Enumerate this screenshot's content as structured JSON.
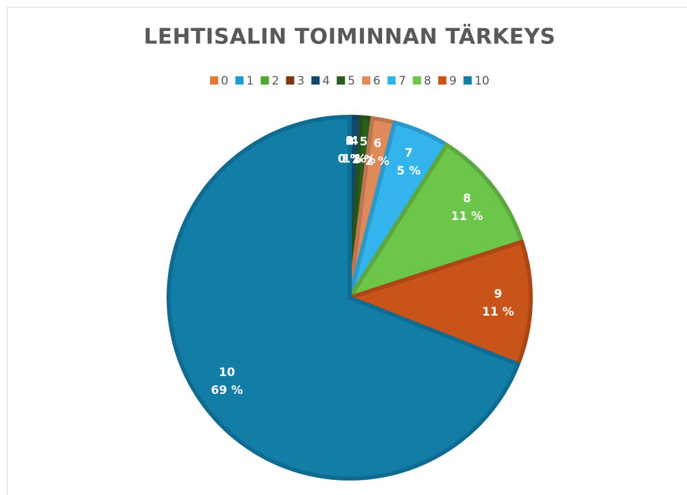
{
  "chart_data": {
    "type": "pie",
    "title": "LEHTISALIN TOIMINNAN TÄRKEYS",
    "categories": [
      "0",
      "1",
      "2",
      "3",
      "4",
      "5",
      "6",
      "7",
      "8",
      "9",
      "10"
    ],
    "values": [
      0,
      0,
      0,
      0,
      1,
      1,
      2,
      5,
      11,
      11,
      69
    ],
    "value_labels": [
      "0 %",
      "0 %",
      "0 %",
      "0 %",
      "1 %",
      "1 %",
      "2 %",
      "5 %",
      "11 %",
      "11 %",
      "69 %"
    ],
    "colors": [
      "#e07b39",
      "#1f9bd1",
      "#4ea72e",
      "#7a3a0f",
      "#0f4a6e",
      "#2b5e1e",
      "#e08a5c",
      "#33b4ec",
      "#6cc64a",
      "#c9541a",
      "#127ea8"
    ],
    "legend": "top"
  }
}
